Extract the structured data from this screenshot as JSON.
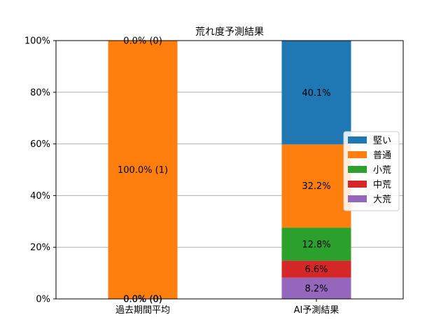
{
  "chart_data": {
    "type": "bar",
    "stacked": true,
    "title": "荒れ度予測結果",
    "xlabel": "",
    "ylabel": "",
    "categories": [
      "過去期間平均",
      "AI予測結果"
    ],
    "ylim": [
      0,
      100
    ],
    "y_ticks": [
      "0%",
      "20%",
      "40%",
      "60%",
      "80%",
      "100%"
    ],
    "grid": "y",
    "legend_position": "right",
    "series": [
      {
        "name": "大荒",
        "color": "#9467bd",
        "values": [
          0,
          8.2
        ],
        "labels": [
          "0.0% (0)",
          "8.2%"
        ]
      },
      {
        "name": "中荒",
        "color": "#d62728",
        "values": [
          0,
          6.6
        ],
        "labels": [
          "0.0% (0)",
          "6.6%"
        ]
      },
      {
        "name": "小荒",
        "color": "#2ca02c",
        "values": [
          0,
          12.8
        ],
        "labels": [
          "0.0% (0)",
          "12.8%"
        ]
      },
      {
        "name": "普通",
        "color": "#ff7f0e",
        "values": [
          100,
          32.2
        ],
        "labels": [
          "100.0% (1)",
          "32.2%"
        ]
      },
      {
        "name": "堅い",
        "color": "#1f77b4",
        "values": [
          0,
          40.1
        ],
        "labels": [
          "0.0% (0)",
          "40.1%"
        ]
      }
    ],
    "legend_order": [
      "堅い",
      "普通",
      "小荒",
      "中荒",
      "大荒"
    ]
  }
}
